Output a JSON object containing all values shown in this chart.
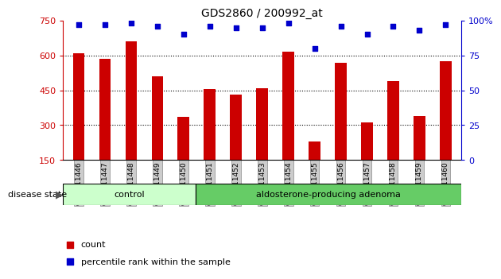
{
  "title": "GDS2860 / 200992_at",
  "samples": [
    "GSM211446",
    "GSM211447",
    "GSM211448",
    "GSM211449",
    "GSM211450",
    "GSM211451",
    "GSM211452",
    "GSM211453",
    "GSM211454",
    "GSM211455",
    "GSM211456",
    "GSM211457",
    "GSM211458",
    "GSM211459",
    "GSM211460"
  ],
  "counts": [
    610,
    585,
    660,
    510,
    335,
    455,
    430,
    460,
    615,
    230,
    570,
    310,
    490,
    340,
    575
  ],
  "percentile_ranks": [
    97,
    97,
    98,
    96,
    90,
    96,
    95,
    95,
    98,
    80,
    96,
    90,
    96,
    93,
    97
  ],
  "groups": [
    "control",
    "control",
    "control",
    "control",
    "control",
    "adenoma",
    "adenoma",
    "adenoma",
    "adenoma",
    "adenoma",
    "adenoma",
    "adenoma",
    "adenoma",
    "adenoma",
    "adenoma"
  ],
  "ylim_left": [
    150,
    750
  ],
  "ylim_right": [
    0,
    100
  ],
  "yticks_left": [
    150,
    300,
    450,
    600,
    750
  ],
  "yticks_right": [
    0,
    25,
    50,
    75,
    100
  ],
  "bar_color": "#cc0000",
  "dot_color": "#0000cc",
  "control_color": "#ccffcc",
  "adenoma_color": "#66cc66",
  "tick_bg_color": "#cccccc",
  "tick_edge_color": "#888888"
}
